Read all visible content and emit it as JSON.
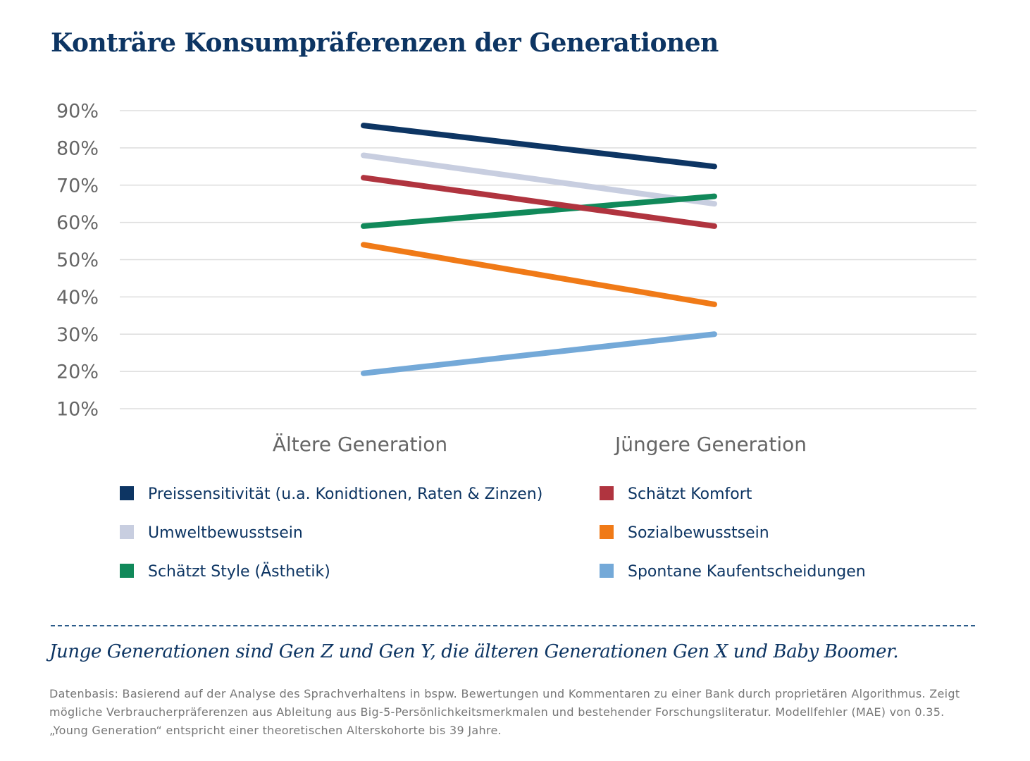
{
  "chart_data": {
    "type": "line",
    "title": "Konträre Konsumpräferenzen der Generationen",
    "categories": [
      "Ältere Generation",
      "Jüngere Generation"
    ],
    "series": [
      {
        "name": "Preissensitivität (u.a. Konidtionen, Raten & Zinzen)",
        "color": "#0d3563",
        "values": [
          86,
          75
        ]
      },
      {
        "name": "Umweltbewusstsein",
        "color": "#c8cee0",
        "values": [
          78,
          65
        ]
      },
      {
        "name": "Schätzt Style (Ästhetik)",
        "color": "#11895a",
        "values": [
          59,
          67
        ]
      },
      {
        "name": "Schätzt Komfort",
        "color": "#b0343f",
        "values": [
          72,
          59
        ]
      },
      {
        "name": "Sozialbewusstsein",
        "color": "#f07a17",
        "values": [
          54,
          38
        ]
      },
      {
        "name": "Spontane Kaufentscheidungen",
        "color": "#74a9d8",
        "values": [
          19.5,
          30
        ]
      }
    ],
    "ylim": [
      10,
      90
    ],
    "yticks": [
      {
        "value": 10,
        "label": "10%"
      },
      {
        "value": 20,
        "label": "20%"
      },
      {
        "value": 30,
        "label": "30%"
      },
      {
        "value": 40,
        "label": "40%"
      },
      {
        "value": 50,
        "label": "50%"
      },
      {
        "value": 60,
        "label": "60%"
      },
      {
        "value": 70,
        "label": "70%"
      },
      {
        "value": 80,
        "label": "80%"
      },
      {
        "value": 90,
        "label": "90%"
      }
    ],
    "grid": true,
    "note": "Junge Generationen sind Gen Z und Gen Y, die älteren Generationen Gen X und Baby Boomer.",
    "source": "Datenbasis: Basierend auf der Analyse des Sprachverhaltens in bspw. Bewertungen und Kommentaren zu einer Bank durch proprietären Algorithmus. Zeigt mögliche Verbraucherpräferenzen aus Ableitung aus Big-5-Persönlichkeitsmerkmalen und bestehender Forschungsliteratur. Modellfehler (MAE) von 0.35. „Young Generation“ entspricht einer theoretischen Alterskohorte bis 39 Jahre."
  }
}
